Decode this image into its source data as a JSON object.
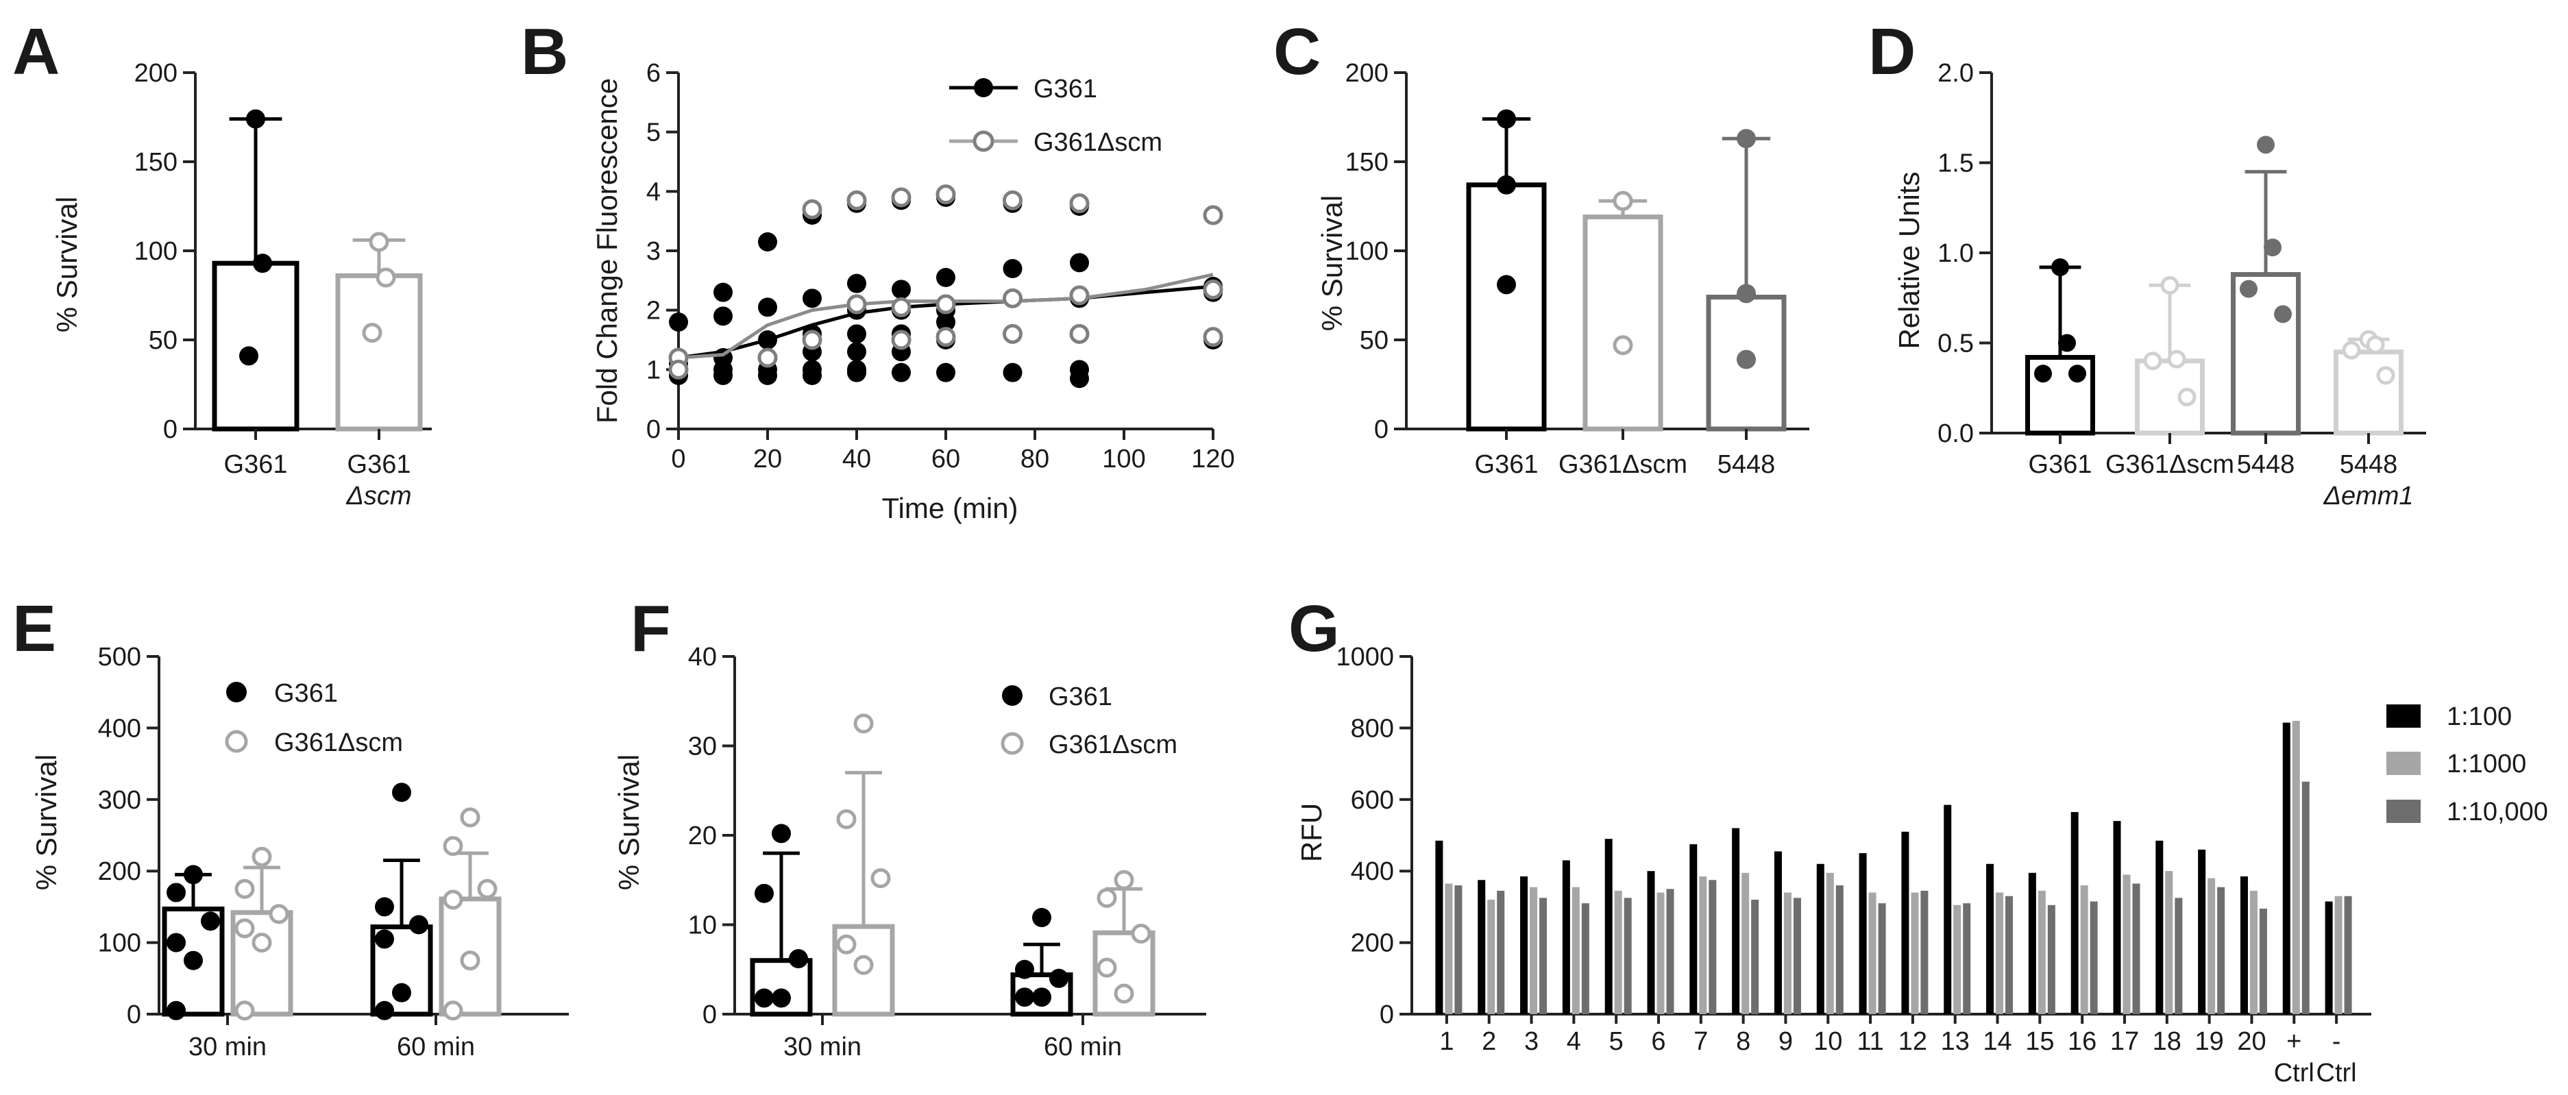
{
  "colors": {
    "black": "#000000",
    "lightgray": "#a6a6a6",
    "midgray": "#6e6e6e",
    "verylight": "#d0d0d0"
  },
  "chart_data": [
    {
      "panel": "A",
      "type": "bar",
      "title": "",
      "ylabel": "% Survival",
      "xlabel": "",
      "ylim": [
        0,
        200
      ],
      "yticks": [
        0,
        50,
        100,
        150,
        200
      ],
      "categories": [
        {
          "line1": "G361",
          "line2": ""
        },
        {
          "line1": "G361",
          "line2": "Δscm"
        }
      ],
      "means": [
        93,
        86
      ],
      "err_upper": [
        174,
        106
      ],
      "points": [
        [
          174,
          93,
          41
        ],
        [
          105,
          85,
          54
        ]
      ],
      "styles": [
        "black-filled",
        "lightgray-open"
      ]
    },
    {
      "panel": "B",
      "type": "scatter",
      "title": "",
      "xlabel": "Time (min)",
      "ylabel": "Fold  Change Fluorescence",
      "xlim": [
        0,
        120
      ],
      "ylim": [
        0,
        6
      ],
      "xticks": [
        0,
        20,
        40,
        60,
        80,
        100,
        120
      ],
      "yticks": [
        0,
        1,
        2,
        3,
        4,
        5,
        6
      ],
      "series": [
        {
          "name": "G361",
          "style": "black-filled",
          "points": [
            [
              0,
              1.8
            ],
            [
              0,
              1.1
            ],
            [
              0,
              1.0
            ],
            [
              0,
              0.9
            ],
            [
              10,
              2.3
            ],
            [
              10,
              1.9
            ],
            [
              10,
              1.2
            ],
            [
              10,
              1.0
            ],
            [
              10,
              0.9
            ],
            [
              20,
              3.15
            ],
            [
              20,
              2.05
            ],
            [
              20,
              1.5
            ],
            [
              20,
              1.2
            ],
            [
              20,
              1.0
            ],
            [
              20,
              0.9
            ],
            [
              30,
              3.6
            ],
            [
              30,
              2.2
            ],
            [
              30,
              1.6
            ],
            [
              30,
              1.3
            ],
            [
              30,
              1.0
            ],
            [
              30,
              0.9
            ],
            [
              40,
              3.8
            ],
            [
              40,
              2.45
            ],
            [
              40,
              2.0
            ],
            [
              40,
              1.6
            ],
            [
              40,
              1.3
            ],
            [
              40,
              1.0
            ],
            [
              40,
              0.95
            ],
            [
              50,
              3.85
            ],
            [
              50,
              2.35
            ],
            [
              50,
              2.0
            ],
            [
              50,
              1.6
            ],
            [
              50,
              1.3
            ],
            [
              50,
              0.95
            ],
            [
              60,
              3.9
            ],
            [
              60,
              2.55
            ],
            [
              60,
              2.0
            ],
            [
              60,
              1.8
            ],
            [
              60,
              1.5
            ],
            [
              60,
              0.95
            ],
            [
              75,
              3.8
            ],
            [
              75,
              2.7
            ],
            [
              75,
              2.2
            ],
            [
              75,
              1.6
            ],
            [
              75,
              0.95
            ],
            [
              90,
              3.75
            ],
            [
              90,
              2.8
            ],
            [
              90,
              2.2
            ],
            [
              90,
              1.6
            ],
            [
              90,
              1.0
            ],
            [
              90,
              0.85
            ],
            [
              120,
              3.6
            ],
            [
              120,
              2.4
            ],
            [
              120,
              2.3
            ],
            [
              120,
              1.5
            ]
          ],
          "fit": [
            [
              0,
              1.2
            ],
            [
              10,
              1.3
            ],
            [
              20,
              1.5
            ],
            [
              30,
              1.75
            ],
            [
              40,
              1.95
            ],
            [
              50,
              2.05
            ],
            [
              60,
              2.1
            ],
            [
              75,
              2.15
            ],
            [
              90,
              2.2
            ],
            [
              105,
              2.3
            ],
            [
              120,
              2.4
            ]
          ]
        },
        {
          "name": "G361Δscm",
          "style": "gray-open",
          "points": [
            [
              0,
              1.2
            ],
            [
              0,
              1.0
            ],
            [
              20,
              1.2
            ],
            [
              30,
              3.7
            ],
            [
              30,
              1.5
            ],
            [
              40,
              3.85
            ],
            [
              40,
              2.1
            ],
            [
              50,
              3.9
            ],
            [
              50,
              2.05
            ],
            [
              50,
              1.5
            ],
            [
              60,
              3.95
            ],
            [
              60,
              2.1
            ],
            [
              60,
              1.55
            ],
            [
              75,
              3.85
            ],
            [
              75,
              2.2
            ],
            [
              75,
              1.6
            ],
            [
              90,
              3.8
            ],
            [
              90,
              2.25
            ],
            [
              90,
              1.6
            ],
            [
              120,
              3.6
            ],
            [
              120,
              2.35
            ],
            [
              120,
              1.55
            ]
          ],
          "fit": [
            [
              0,
              1.2
            ],
            [
              10,
              1.25
            ],
            [
              20,
              1.75
            ],
            [
              30,
              2.0
            ],
            [
              40,
              2.1
            ],
            [
              50,
              2.15
            ],
            [
              60,
              2.15
            ],
            [
              75,
              2.15
            ],
            [
              90,
              2.2
            ],
            [
              105,
              2.35
            ],
            [
              120,
              2.6
            ]
          ]
        }
      ]
    },
    {
      "panel": "C",
      "type": "bar",
      "title": "",
      "ylabel": "% Survival",
      "xlabel": "",
      "ylim": [
        0,
        200
      ],
      "yticks": [
        0,
        50,
        100,
        150,
        200
      ],
      "categories": [
        {
          "line1": "G361",
          "line2": ""
        },
        {
          "line1": "G361Δscm",
          "line2": ""
        },
        {
          "line1": "5448",
          "line2": ""
        }
      ],
      "means": [
        137,
        119,
        74
      ],
      "err_upper": [
        174,
        128,
        163
      ],
      "points": [
        [
          174,
          137,
          81
        ],
        [
          128,
          47,
          128
        ],
        [
          163,
          76,
          39
        ]
      ],
      "styles": [
        "black-filled",
        "lightgray-open",
        "midgray-filled"
      ]
    },
    {
      "panel": "D",
      "type": "bar",
      "title": "",
      "ylabel": "Relative Units",
      "xlabel": "",
      "ylim": [
        0,
        2
      ],
      "yticks": [
        "0.0",
        "0.5",
        "1.0",
        "1.5",
        "2.0"
      ],
      "categories": [
        {
          "line1": "G361",
          "line2": ""
        },
        {
          "line1": "G361Δscm",
          "line2": ""
        },
        {
          "line1": "5448",
          "line2": ""
        },
        {
          "line1": "5448",
          "line2": "Δemm1"
        }
      ],
      "means": [
        0.42,
        0.4,
        0.88,
        0.45
      ],
      "err_upper": [
        0.92,
        0.82,
        1.45,
        0.52
      ],
      "points": [
        [
          0.92,
          0.5,
          0.33,
          0.33
        ],
        [
          0.82,
          0.41,
          0.4,
          0.2
        ],
        [
          1.6,
          1.03,
          0.8,
          0.66
        ],
        [
          0.52,
          0.49,
          0.46,
          0.32
        ]
      ],
      "styles": [
        "black-filled",
        "verylight-open",
        "midgray-filled",
        "verylight-open"
      ]
    },
    {
      "panel": "E",
      "type": "bar",
      "title": "",
      "ylabel": "% Survival",
      "xlabel": "",
      "ylim": [
        0,
        500
      ],
      "yticks": [
        0,
        100,
        200,
        300,
        400,
        500
      ],
      "groups": [
        "30 min",
        "60 min"
      ],
      "series": [
        {
          "name": "G361",
          "style": "black-filled",
          "means": [
            147,
            122
          ],
          "err_upper": [
            195,
            215
          ],
          "points": [
            [
              195,
              170,
              130,
              100,
              75,
              5
            ],
            [
              310,
              150,
              125,
              105,
              30,
              5
            ]
          ]
        },
        {
          "name": "G361Δscm",
          "style": "lightgray-open",
          "means": [
            142,
            161
          ],
          "err_upper": [
            205,
            225
          ],
          "points": [
            [
              220,
              175,
              140,
              120,
              100,
              5
            ],
            [
              275,
              235,
              175,
              160,
              75,
              5
            ]
          ]
        }
      ]
    },
    {
      "panel": "F",
      "type": "bar",
      "title": "",
      "ylabel": "% Survival",
      "xlabel": "",
      "ylim": [
        0,
        40
      ],
      "yticks": [
        0,
        10,
        20,
        30,
        40
      ],
      "groups": [
        "30 min",
        "60 min"
      ],
      "series": [
        {
          "name": "G361",
          "style": "black-filled",
          "means": [
            6,
            4.4
          ],
          "err_upper": [
            18,
            7.8
          ],
          "points": [
            [
              20.2,
              13.5,
              6.2,
              1.8,
              1.8
            ],
            [
              10.8,
              5.0,
              4.0,
              1.9,
              1.9
            ]
          ]
        },
        {
          "name": "G361Δscm",
          "style": "lightgray-open",
          "means": [
            9.8,
            9.1
          ],
          "err_upper": [
            27,
            14
          ],
          "points": [
            [
              32.5,
              21.8,
              15.2,
              7.8,
              5.5
            ],
            [
              15.0,
              13.0,
              9.0,
              5.2,
              2.3
            ]
          ]
        }
      ]
    },
    {
      "panel": "G",
      "type": "bar",
      "title": "",
      "ylabel": "RFU",
      "xlabel": "",
      "ylim": [
        0,
        1000
      ],
      "yticks": [
        0,
        200,
        400,
        600,
        800,
        1000
      ],
      "categories": [
        {
          "line1": "1",
          "line2": ""
        },
        {
          "line1": "2",
          "line2": ""
        },
        {
          "line1": "3",
          "line2": ""
        },
        {
          "line1": "4",
          "line2": ""
        },
        {
          "line1": "5",
          "line2": ""
        },
        {
          "line1": "6",
          "line2": ""
        },
        {
          "line1": "7",
          "line2": ""
        },
        {
          "line1": "8",
          "line2": ""
        },
        {
          "line1": "9",
          "line2": ""
        },
        {
          "line1": "10",
          "line2": ""
        },
        {
          "line1": "11",
          "line2": ""
        },
        {
          "line1": "12",
          "line2": ""
        },
        {
          "line1": "13",
          "line2": ""
        },
        {
          "line1": "14",
          "line2": ""
        },
        {
          "line1": "15",
          "line2": ""
        },
        {
          "line1": "16",
          "line2": ""
        },
        {
          "line1": "17",
          "line2": ""
        },
        {
          "line1": "18",
          "line2": ""
        },
        {
          "line1": "19",
          "line2": ""
        },
        {
          "line1": "20",
          "line2": ""
        },
        {
          "line1": "+",
          "line2": "Ctrl"
        },
        {
          "line1": "-",
          "line2": "Ctrl"
        }
      ],
      "series": [
        {
          "name": "1:100",
          "color": "#000000",
          "values": [
            485,
            375,
            385,
            430,
            490,
            400,
            475,
            520,
            455,
            420,
            450,
            510,
            585,
            420,
            395,
            565,
            540,
            485,
            460,
            385,
            815,
            315
          ]
        },
        {
          "name": "1:1000",
          "color": "#a6a6a6",
          "values": [
            365,
            320,
            355,
            355,
            345,
            340,
            385,
            395,
            340,
            395,
            340,
            340,
            305,
            340,
            345,
            360,
            390,
            400,
            380,
            345,
            820,
            330
          ]
        },
        {
          "name": "1:10,000",
          "color": "#6e6e6e",
          "values": [
            360,
            345,
            325,
            310,
            325,
            350,
            375,
            320,
            325,
            360,
            310,
            345,
            310,
            330,
            305,
            315,
            365,
            325,
            355,
            295,
            650,
            330
          ]
        }
      ]
    }
  ]
}
